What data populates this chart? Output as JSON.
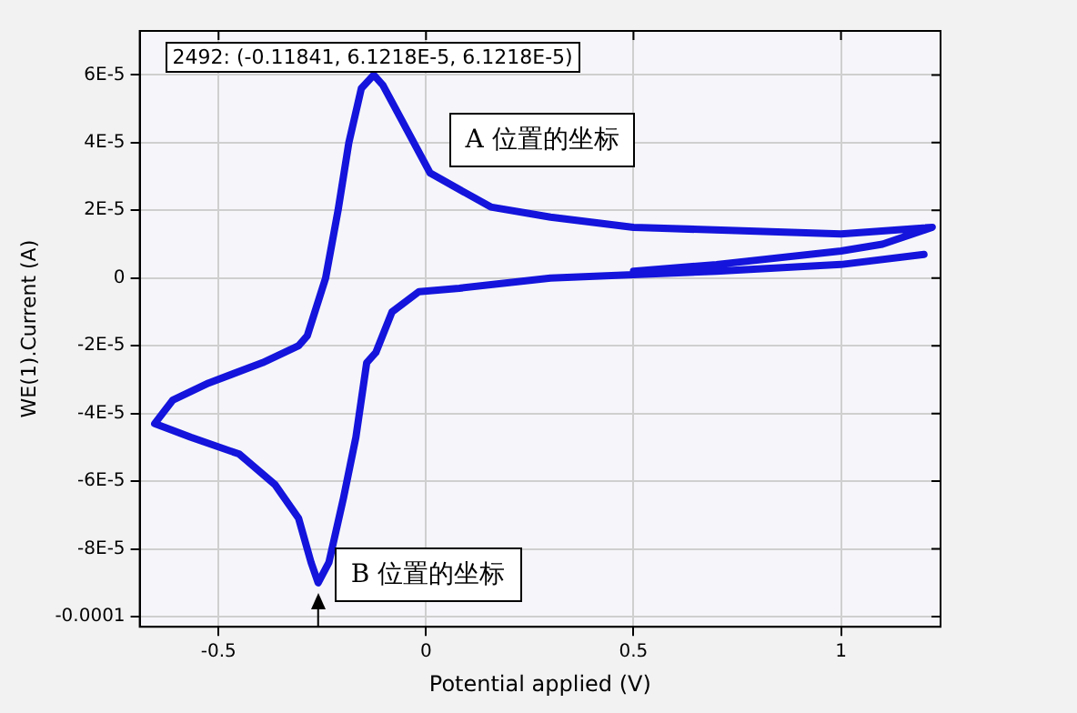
{
  "chart_data": {
    "type": "line",
    "xlabel": "Potential applied (V)",
    "ylabel": "WE(1).Current (A)",
    "xlim": [
      -0.69,
      1.24
    ],
    "ylim": [
      -0.000103,
      7.3e-05
    ],
    "xticks": [
      -0.5,
      0,
      0.5,
      1
    ],
    "yticks": [
      {
        "value": -0.0001,
        "label": "-0.0001"
      },
      {
        "value": -8e-05,
        "label": "-8E-5"
      },
      {
        "value": -6e-05,
        "label": "-6E-5"
      },
      {
        "value": -4e-05,
        "label": "-4E-5"
      },
      {
        "value": -2e-05,
        "label": "-2E-5"
      },
      {
        "value": 0,
        "label": "0"
      },
      {
        "value": 2e-05,
        "label": "2E-5"
      },
      {
        "value": 4e-05,
        "label": "4E-5"
      },
      {
        "value": 6e-05,
        "label": "6E-5"
      }
    ],
    "grid": true,
    "legend": false,
    "marker": "none",
    "line_style": "solid",
    "series": [
      {
        "color": "#1414dc",
        "x": [
          1.2,
          1.0,
          0.7,
          0.5,
          0.3,
          0.08,
          -0.017,
          -0.082,
          -0.121,
          -0.143,
          -0.169,
          -0.199,
          -0.234,
          -0.26,
          -0.277,
          -0.307,
          -0.364,
          -0.45,
          -0.567,
          -0.654,
          -0.61,
          -0.524,
          -0.394,
          -0.307,
          -0.286,
          -0.242,
          -0.212,
          -0.186,
          -0.156,
          -0.126,
          -0.104,
          -0.06,
          0.01,
          0.156,
          0.3,
          0.5,
          1.0,
          1.22,
          1.1,
          1.0,
          0.7,
          0.5
        ],
        "values": [
          7e-06,
          4e-06,
          2e-06,
          1e-06,
          0,
          -3e-06,
          -4e-06,
          -1e-05,
          -2.2e-05,
          -2.5e-05,
          -4.7e-05,
          -6.5e-05,
          -8.4e-05,
          -9e-05,
          -8.4e-05,
          -7.1e-05,
          -6.1e-05,
          -5.2e-05,
          -4.7e-05,
          -4.3e-05,
          -3.6e-05,
          -3.1e-05,
          -2.5e-05,
          -2e-05,
          -1.7e-05,
          0,
          2e-05,
          4e-05,
          5.6e-05,
          6e-05,
          5.7e-05,
          4.7e-05,
          3.1e-05,
          2.1e-05,
          1.8e-05,
          1.5e-05,
          1.3e-05,
          1.5e-05,
          1e-05,
          8e-06,
          4e-06,
          2e-06
        ]
      }
    ],
    "annotations": [
      "2492: (-0.11841, 6.1218E-5, 6.1218E-5)",
      "A 位置的坐标",
      {
        "text": "B 位置的坐标",
        "x": -0.26,
        "y": -9e-05
      }
    ]
  }
}
